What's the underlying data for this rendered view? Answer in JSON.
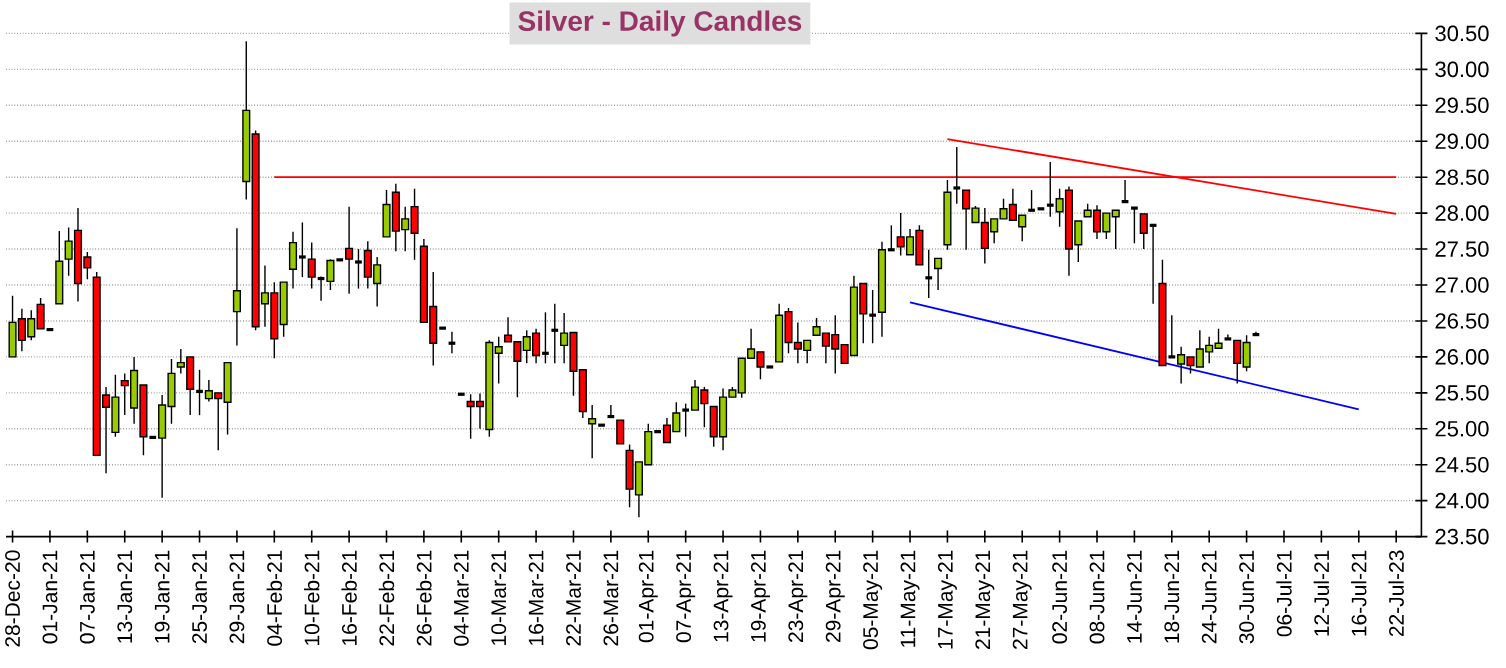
{
  "chart_data": {
    "type": "candlestick",
    "title": "Silver - Daily Candles",
    "categories": [
      "28-Dec-20",
      null,
      null,
      null,
      "01-Jan-21",
      null,
      null,
      null,
      "07-Jan-21",
      null,
      null,
      null,
      "13-Jan-21",
      null,
      null,
      null,
      "19-Jan-21",
      null,
      null,
      null,
      "25-Jan-21",
      null,
      null,
      null,
      "29-Jan-21",
      null,
      null,
      null,
      "04-Feb-21",
      null,
      null,
      null,
      "10-Feb-21",
      null,
      null,
      null,
      "16-Feb-21",
      null,
      null,
      null,
      "22-Feb-21",
      null,
      null,
      null,
      "26-Feb-21",
      null,
      null,
      null,
      "04-Mar-21",
      null,
      null,
      null,
      "10-Mar-21",
      null,
      null,
      null,
      "16-Mar-21",
      null,
      null,
      null,
      "22-Mar-21",
      null,
      null,
      null,
      "26-Mar-21",
      null,
      null,
      null,
      "01-Apr-21",
      null,
      null,
      null,
      "07-Apr-21",
      null,
      null,
      null,
      "13-Apr-21",
      null,
      null,
      null,
      "19-Apr-21",
      null,
      null,
      null,
      "23-Apr-21",
      null,
      null,
      null,
      "29-Apr-21",
      null,
      null,
      null,
      "05-May-21",
      null,
      null,
      null,
      "11-May-21",
      null,
      null,
      null,
      "17-May-21",
      null,
      null,
      null,
      "21-May-21",
      null,
      null,
      null,
      "27-May-21",
      null,
      null,
      null,
      "02-Jun-21",
      null,
      null,
      null,
      "08-Jun-21",
      null,
      null,
      null,
      "14-Jun-21",
      null,
      null,
      null,
      "18-Jun-21",
      null,
      null,
      null,
      "24-Jun-21",
      null,
      null,
      null,
      "30-Jun-21",
      null,
      null,
      null,
      "06-Jul-21",
      null,
      null,
      null,
      "12-Jul-21",
      null,
      null,
      null,
      "16-Jul-21",
      null,
      null,
      null,
      "22-Jul-23"
    ],
    "ohlc": [
      [
        26.0,
        26.85,
        26.0,
        26.48
      ],
      [
        26.53,
        26.67,
        26.08,
        26.23
      ],
      [
        26.28,
        26.65,
        26.23,
        26.53
      ],
      [
        26.73,
        26.82,
        26.39,
        26.39
      ],
      [
        26.38,
        26.38,
        26.38,
        26.38
      ],
      [
        26.74,
        27.75,
        26.74,
        27.33
      ],
      [
        27.36,
        27.8,
        27.13,
        27.61
      ],
      [
        27.76,
        28.07,
        26.77,
        27.02
      ],
      [
        27.39,
        27.46,
        27.08,
        27.24
      ],
      [
        27.11,
        27.18,
        24.63,
        24.63
      ],
      [
        25.47,
        25.58,
        24.38,
        25.3
      ],
      [
        24.95,
        25.75,
        24.89,
        25.44
      ],
      [
        25.67,
        25.77,
        25.19,
        25.6
      ],
      [
        25.29,
        26.0,
        25.07,
        25.81
      ],
      [
        25.61,
        25.61,
        24.63,
        24.89
      ],
      [
        24.88,
        24.88,
        24.88,
        24.88
      ],
      [
        24.87,
        25.47,
        24.04,
        25.33
      ],
      [
        25.31,
        25.97,
        25.07,
        25.77
      ],
      [
        25.86,
        26.11,
        25.77,
        25.92
      ],
      [
        26.0,
        26.0,
        25.19,
        25.55
      ],
      [
        25.52,
        25.82,
        25.19,
        25.52
      ],
      [
        25.42,
        25.68,
        25.38,
        25.53
      ],
      [
        25.5,
        25.5,
        24.7,
        25.42
      ],
      [
        25.37,
        25.92,
        24.92,
        25.92
      ],
      [
        26.63,
        27.79,
        26.16,
        26.92
      ],
      [
        28.44,
        30.39,
        28.19,
        29.43
      ],
      [
        29.1,
        29.15,
        26.37,
        26.42
      ],
      [
        26.74,
        27.27,
        26.42,
        26.89
      ],
      [
        26.89,
        27.04,
        25.98,
        26.25
      ],
      [
        26.45,
        27.04,
        26.28,
        27.04
      ],
      [
        27.22,
        27.74,
        26.95,
        27.59
      ],
      [
        27.39,
        27.87,
        27.11,
        27.39
      ],
      [
        27.36,
        27.59,
        26.95,
        27.11
      ],
      [
        27.09,
        27.12,
        26.78,
        27.09
      ],
      [
        27.05,
        27.36,
        26.93,
        27.34
      ],
      [
        27.35,
        27.35,
        27.35,
        27.35
      ],
      [
        27.51,
        28.09,
        26.88,
        27.36
      ],
      [
        27.32,
        27.5,
        26.95,
        27.32
      ],
      [
        27.48,
        27.61,
        26.95,
        27.11
      ],
      [
        27.02,
        27.39,
        26.7,
        27.28
      ],
      [
        27.67,
        28.32,
        27.67,
        28.12
      ],
      [
        28.29,
        28.41,
        27.47,
        27.75
      ],
      [
        27.77,
        28.09,
        27.47,
        27.92
      ],
      [
        28.09,
        28.34,
        27.35,
        27.72
      ],
      [
        27.54,
        27.64,
        26.48,
        26.48
      ],
      [
        26.7,
        27.18,
        25.88,
        26.19
      ],
      [
        26.4,
        26.4,
        26.4,
        26.4
      ],
      [
        26.19,
        26.35,
        26.05,
        26.19
      ],
      [
        25.48,
        25.48,
        25.48,
        25.48
      ],
      [
        25.38,
        25.48,
        24.86,
        25.31
      ],
      [
        25.38,
        25.49,
        25.0,
        25.31
      ],
      [
        24.99,
        26.23,
        24.89,
        26.2
      ],
      [
        26.05,
        26.28,
        25.63,
        26.14
      ],
      [
        26.3,
        26.55,
        26.21,
        26.21
      ],
      [
        26.21,
        26.21,
        25.44,
        25.94
      ],
      [
        26.09,
        26.37,
        25.91,
        26.28
      ],
      [
        26.33,
        26.39,
        25.91,
        26.02
      ],
      [
        26.05,
        26.62,
        25.91,
        26.05
      ],
      [
        26.37,
        26.74,
        25.91,
        26.37
      ],
      [
        26.16,
        26.61,
        25.91,
        26.33
      ],
      [
        26.34,
        26.34,
        25.46,
        25.8
      ],
      [
        25.82,
        25.82,
        25.15,
        25.24
      ],
      [
        25.07,
        25.33,
        24.59,
        25.14
      ],
      [
        25.05,
        25.05,
        25.05,
        25.05
      ],
      [
        25.17,
        25.33,
        25.17,
        25.17
      ],
      [
        25.12,
        25.12,
        24.79,
        24.79
      ],
      [
        24.7,
        24.78,
        23.91,
        24.16
      ],
      [
        24.08,
        24.54,
        23.77,
        24.54
      ],
      [
        24.5,
        25.07,
        24.5,
        24.96
      ],
      [
        24.96,
        24.96,
        24.96,
        24.96
      ],
      [
        25.05,
        25.15,
        24.81,
        24.81
      ],
      [
        24.96,
        25.37,
        24.96,
        25.22
      ],
      [
        25.26,
        25.35,
        24.89,
        25.26
      ],
      [
        25.26,
        25.68,
        25.26,
        25.58
      ],
      [
        25.54,
        25.58,
        25.02,
        25.35
      ],
      [
        25.31,
        25.31,
        24.75,
        24.89
      ],
      [
        24.89,
        25.56,
        24.7,
        25.44
      ],
      [
        25.44,
        25.58,
        25.44,
        25.54
      ],
      [
        25.5,
        25.98,
        25.43,
        25.98
      ],
      [
        25.98,
        26.39,
        25.98,
        26.11
      ],
      [
        26.07,
        26.07,
        25.69,
        25.86
      ],
      [
        25.86,
        25.86,
        25.86,
        25.86
      ],
      [
        25.93,
        26.74,
        25.93,
        26.58
      ],
      [
        26.63,
        26.68,
        26.05,
        26.2
      ],
      [
        26.2,
        26.48,
        25.91,
        26.11
      ],
      [
        26.09,
        26.23,
        25.91,
        26.23
      ],
      [
        26.3,
        26.54,
        26.3,
        26.42
      ],
      [
        26.33,
        26.33,
        25.91,
        26.15
      ],
      [
        26.31,
        26.58,
        25.77,
        26.11
      ],
      [
        26.17,
        26.17,
        25.91,
        25.91
      ],
      [
        26.02,
        27.13,
        26.02,
        26.97
      ],
      [
        27.02,
        27.02,
        26.19,
        26.6
      ],
      [
        26.58,
        26.93,
        26.19,
        26.58
      ],
      [
        26.62,
        27.6,
        26.28,
        27.49
      ],
      [
        27.49,
        27.83,
        27.49,
        27.49
      ],
      [
        27.67,
        28.0,
        27.41,
        27.53
      ],
      [
        27.42,
        27.78,
        27.42,
        27.67
      ],
      [
        27.76,
        27.83,
        27.28,
        27.28
      ],
      [
        27.1,
        27.49,
        26.82,
        27.1
      ],
      [
        27.23,
        27.37,
        26.93,
        27.37
      ],
      [
        27.56,
        28.46,
        27.49,
        28.29
      ],
      [
        28.35,
        28.92,
        28.13,
        28.35
      ],
      [
        28.32,
        28.32,
        27.49,
        28.06
      ],
      [
        27.87,
        28.1,
        27.87,
        28.07
      ],
      [
        27.87,
        28.07,
        27.3,
        27.51
      ],
      [
        27.74,
        27.92,
        27.58,
        27.92
      ],
      [
        27.92,
        28.2,
        27.92,
        28.06
      ],
      [
        28.12,
        28.34,
        27.9,
        27.9
      ],
      [
        27.81,
        27.97,
        27.61,
        27.97
      ],
      [
        28.04,
        28.32,
        28.04,
        28.04
      ],
      [
        28.06,
        28.06,
        28.06,
        28.06
      ],
      [
        28.11,
        28.71,
        27.95,
        28.11
      ],
      [
        28.02,
        28.34,
        27.81,
        28.2
      ],
      [
        28.32,
        28.37,
        27.13,
        27.5
      ],
      [
        27.56,
        27.89,
        27.32,
        27.89
      ],
      [
        27.95,
        28.13,
        27.95,
        28.04
      ],
      [
        28.04,
        28.11,
        27.64,
        27.74
      ],
      [
        27.74,
        28.0,
        27.64,
        28.0
      ],
      [
        27.95,
        28.04,
        27.5,
        28.04
      ],
      [
        28.16,
        28.46,
        28.16,
        28.16
      ],
      [
        28.07,
        28.07,
        27.58,
        28.07
      ],
      [
        27.99,
        27.99,
        27.5,
        27.72
      ],
      [
        27.83,
        27.83,
        26.74,
        27.83
      ],
      [
        27.02,
        27.35,
        25.88,
        25.88
      ],
      [
        26.0,
        26.58,
        26.0,
        26.0
      ],
      [
        25.9,
        26.14,
        25.63,
        26.03
      ],
      [
        26.0,
        26.0,
        25.77,
        25.88
      ],
      [
        25.86,
        26.37,
        25.86,
        26.11
      ],
      [
        26.07,
        26.28,
        25.91,
        26.16
      ],
      [
        26.12,
        26.39,
        26.12,
        26.19
      ],
      [
        26.25,
        26.31,
        26.25,
        26.25
      ],
      [
        26.23,
        26.23,
        25.63,
        25.91
      ],
      [
        25.86,
        26.3,
        25.8,
        26.2
      ],
      [
        26.31,
        26.35,
        26.31,
        26.31
      ],
      null,
      null,
      null,
      null,
      null,
      null,
      null,
      null,
      null,
      null,
      null,
      null,
      null,
      null,
      null
    ],
    "series": [
      {
        "type": "line",
        "x": [
          "04-Feb-21",
          "22-Jul-23"
        ],
        "values": [
          28.5,
          28.5
        ],
        "color": "#ff0000"
      },
      {
        "type": "line",
        "x": [
          "17-May-21",
          "22-Jul-23"
        ],
        "values": [
          29.03,
          27.99
        ],
        "color": "#ff0000"
      },
      {
        "type": "line",
        "x": [
          "11-May-21",
          "16-Jul-21"
        ],
        "values": [
          26.76,
          25.27
        ],
        "color": "#0000ff"
      }
    ],
    "ylim": [
      23.5,
      30.5
    ],
    "yticks": [
      {
        "value": 23.5,
        "label": "23.50"
      },
      {
        "value": 24,
        "label": "24.00"
      },
      {
        "value": 24.5,
        "label": "24.50"
      },
      {
        "value": 25,
        "label": "25.00"
      },
      {
        "value": 25.5,
        "label": "25.50"
      },
      {
        "value": 26,
        "label": "26.00"
      },
      {
        "value": 26.5,
        "label": "26.50"
      },
      {
        "value": 27,
        "label": "27.00"
      },
      {
        "value": 27.5,
        "label": "27.50"
      },
      {
        "value": 28,
        "label": "28.00"
      },
      {
        "value": 28.5,
        "label": "28.50"
      },
      {
        "value": 29,
        "label": "29.00"
      },
      {
        "value": 29.5,
        "label": "29.50"
      },
      {
        "value": 30,
        "label": "30.00"
      },
      {
        "value": 30.5,
        "label": "30.50"
      }
    ],
    "grid": "y"
  }
}
